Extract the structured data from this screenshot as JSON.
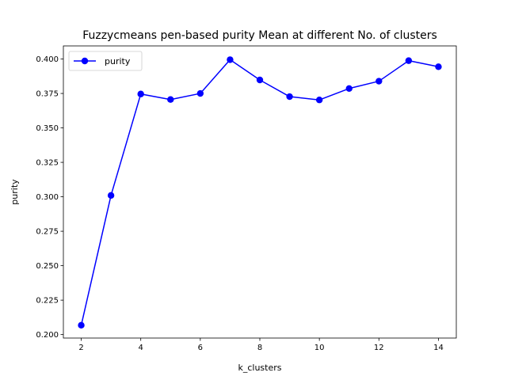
{
  "chart_data": {
    "type": "line",
    "title": "Fuzzycmeans pen-based purity Mean at different No. of clusters",
    "xlabel": "k_clusters",
    "ylabel": "purity",
    "xlim": [
      1.4,
      14.6
    ],
    "ylim": [
      0.1975,
      0.4095
    ],
    "xticks": [
      2,
      4,
      6,
      8,
      10,
      12,
      14
    ],
    "xtick_labels": [
      "2",
      "4",
      "6",
      "8",
      "10",
      "12",
      "14"
    ],
    "yticks": [
      0.2,
      0.225,
      0.25,
      0.275,
      0.3,
      0.325,
      0.35,
      0.375,
      0.4
    ],
    "ytick_labels": [
      "0.200",
      "0.225",
      "0.250",
      "0.275",
      "0.300",
      "0.325",
      "0.350",
      "0.375",
      "0.400"
    ],
    "grid": false,
    "legend_position": "top-left",
    "series": [
      {
        "name": "purity",
        "color": "#0000ff",
        "marker": "circle",
        "x": [
          2,
          3,
          4,
          5,
          6,
          7,
          8,
          9,
          10,
          11,
          12,
          13,
          14
        ],
        "y": [
          0.2068,
          0.301,
          0.3746,
          0.3706,
          0.375,
          0.3995,
          0.3848,
          0.3727,
          0.3703,
          0.3786,
          0.3839,
          0.3988,
          0.3944
        ]
      }
    ]
  }
}
